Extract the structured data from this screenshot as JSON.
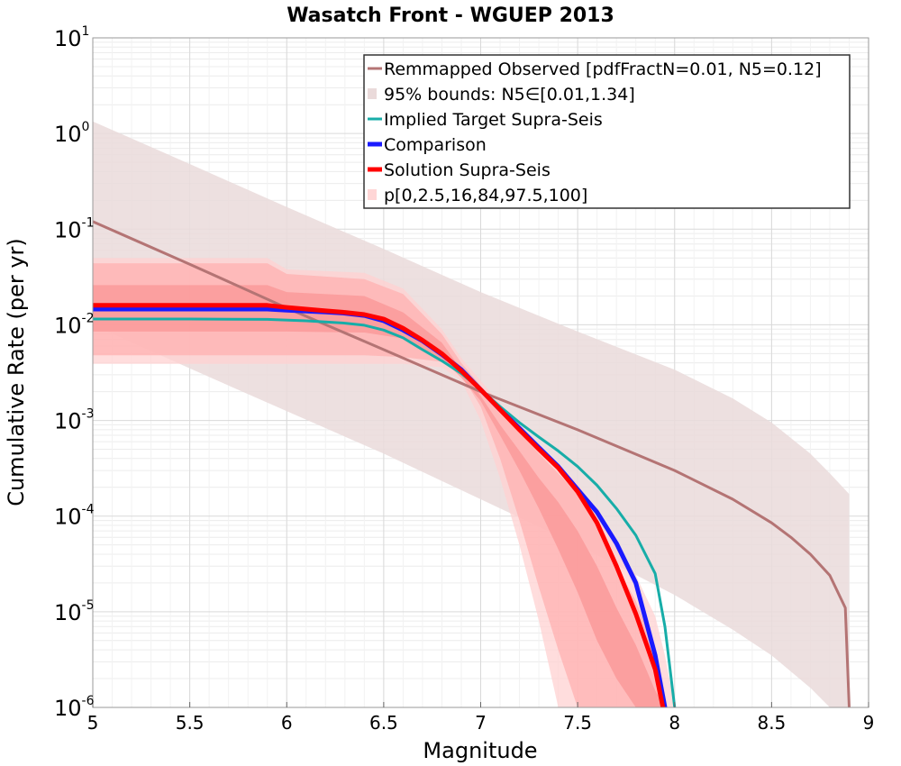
{
  "chart_data": {
    "type": "line",
    "title": "Wasatch Front - WGUEP 2013",
    "xlabel": "Magnitude",
    "ylabel": "Cumulative Rate (per yr)",
    "x_range": [
      5,
      9
    ],
    "y_range": [
      1e-06,
      10
    ],
    "y_scale": "log",
    "x_ticks": [
      "5",
      "5.5",
      "6",
      "6.5",
      "7",
      "7.5",
      "8",
      "8.5",
      "9"
    ],
    "y_ticks": [
      {
        "base": "10",
        "exp": "1",
        "value": 10
      },
      {
        "base": "10",
        "exp": "0",
        "value": 1
      },
      {
        "base": "10",
        "exp": "-1",
        "value": 0.1
      },
      {
        "base": "10",
        "exp": "-2",
        "value": 0.01
      },
      {
        "base": "10",
        "exp": "-3",
        "value": 0.001
      },
      {
        "base": "10",
        "exp": "-4",
        "value": 0.0001
      },
      {
        "base": "10",
        "exp": "-5",
        "value": 1e-05
      },
      {
        "base": "10",
        "exp": "-6",
        "value": 1e-06
      }
    ],
    "grid": true,
    "legend_position": "top-right",
    "legend": [
      {
        "label": "Remmapped Observed [pdfFractN=0.01, N5=0.12]",
        "kind": "line",
        "color": "#b47474"
      },
      {
        "label": "95% bounds: N5∈[0.01,1.34]",
        "kind": "box",
        "color": "#eadada"
      },
      {
        "label": "Implied Target Supra-Seis",
        "kind": "line",
        "color": "#17ada8"
      },
      {
        "label": "Comparison",
        "kind": "line",
        "color": "#1a1aff"
      },
      {
        "label": "Solution Supra-Seis",
        "kind": "line",
        "color": "#ff0000"
      },
      {
        "label": "p[0,2.5,16,84,97.5,100]",
        "kind": "box",
        "color": "#ffd6d6"
      }
    ],
    "bands": [
      {
        "name": "95% bounds: N5∈[0.01,1.34]",
        "color": "#eadada",
        "x": [
          5.0,
          5.5,
          6.0,
          6.5,
          7.0,
          7.5,
          8.0,
          8.3,
          8.5,
          8.7,
          8.8,
          8.9
        ],
        "upper": [
          1.34,
          0.48,
          0.17,
          0.062,
          0.022,
          0.0085,
          0.0034,
          0.0017,
          0.00095,
          0.00045,
          0.00028,
          0.00017
        ],
        "lower": [
          0.01,
          0.0035,
          0.00125,
          0.00045,
          0.00015,
          5e-05,
          1.5e-05,
          6.5e-06,
          3.5e-06,
          1.6e-06,
          1e-06,
          1e-06
        ]
      },
      {
        "name": "p0-p100",
        "color": "#ffd2d2",
        "x": [
          5.0,
          5.9,
          6.0,
          6.4,
          6.6,
          6.8,
          6.9,
          7.0,
          7.1,
          7.2,
          7.3,
          7.4,
          7.5,
          7.6,
          7.7,
          7.8,
          7.9,
          7.95,
          8.0
        ],
        "upper": [
          0.05,
          0.05,
          0.038,
          0.035,
          0.024,
          0.009,
          0.0045,
          0.0026,
          0.0015,
          0.0009,
          0.00055,
          0.00035,
          0.00022,
          0.00011,
          5e-05,
          2.4e-05,
          9e-06,
          3.5e-06,
          1e-06
        ],
        "lower": [
          0.0039,
          0.0039,
          0.0039,
          0.0039,
          0.0039,
          0.0036,
          0.0026,
          0.001,
          0.00025,
          5e-05,
          8e-06,
          1e-06,
          1e-06,
          1e-06,
          1e-06,
          1e-06,
          1e-06,
          1e-06,
          1e-06
        ]
      },
      {
        "name": "p2.5-p97.5",
        "color": "#ffb0b0",
        "x": [
          5.0,
          5.9,
          6.0,
          6.4,
          6.6,
          6.8,
          6.9,
          7.0,
          7.1,
          7.2,
          7.3,
          7.4,
          7.5,
          7.6,
          7.7,
          7.8,
          7.9,
          7.95
        ],
        "upper": [
          0.044,
          0.044,
          0.034,
          0.03,
          0.021,
          0.008,
          0.004,
          0.0023,
          0.0013,
          0.00075,
          0.00045,
          0.00028,
          0.00017,
          8e-05,
          3e-05,
          1.3e-05,
          4e-06,
          1e-06
        ],
        "lower": [
          0.0048,
          0.0048,
          0.0048,
          0.0048,
          0.0046,
          0.0041,
          0.003,
          0.0014,
          0.0004,
          9e-05,
          1.8e-05,
          4e-06,
          1e-06,
          1e-06,
          1e-06,
          1e-06,
          1e-06,
          1e-06
        ]
      },
      {
        "name": "p16-p84",
        "color": "#f99595",
        "x": [
          5.0,
          5.9,
          6.0,
          6.4,
          6.6,
          6.8,
          6.9,
          7.0,
          7.1,
          7.2,
          7.3,
          7.4,
          7.5,
          7.6,
          7.7,
          7.8,
          7.9,
          7.95
        ],
        "upper": [
          0.026,
          0.026,
          0.022,
          0.02,
          0.0135,
          0.0065,
          0.0034,
          0.0018,
          0.0009,
          0.00048,
          0.00025,
          0.00014,
          7e-05,
          3e-05,
          1.1e-05,
          4.5e-06,
          1.5e-06,
          1e-06
        ],
        "lower": [
          0.0085,
          0.0085,
          0.0085,
          0.0083,
          0.0072,
          0.0044,
          0.0028,
          0.0016,
          0.0007,
          0.0003,
          0.00012,
          4.5e-05,
          1.6e-05,
          5e-06,
          2e-06,
          1e-06,
          1e-06,
          1e-06
        ]
      }
    ],
    "series": [
      {
        "name": "Remmapped Observed [pdfFractN=0.01, N5=0.12]",
        "color": "#b47474",
        "width": 3,
        "x": [
          5.0,
          5.5,
          6.0,
          6.5,
          7.0,
          7.5,
          8.0,
          8.3,
          8.5,
          8.6,
          8.7,
          8.8,
          8.88,
          8.9
        ],
        "y": [
          0.12,
          0.043,
          0.015,
          0.0055,
          0.002,
          0.0008,
          0.0003,
          0.00015,
          8.5e-05,
          6e-05,
          4e-05,
          2.4e-05,
          1.1e-05,
          1e-06
        ]
      },
      {
        "name": "Implied Target Supra-Seis",
        "color": "#17ada8",
        "width": 3,
        "x": [
          5.0,
          5.5,
          5.9,
          6.1,
          6.2,
          6.3,
          6.4,
          6.5,
          6.6,
          6.7,
          6.8,
          6.9,
          7.0,
          7.1,
          7.2,
          7.3,
          7.4,
          7.5,
          7.6,
          7.7,
          7.8,
          7.9,
          7.95,
          8.0
        ],
        "y": [
          0.0115,
          0.0115,
          0.0114,
          0.011,
          0.0107,
          0.0104,
          0.0099,
          0.0088,
          0.0073,
          0.0055,
          0.0042,
          0.0031,
          0.0021,
          0.0014,
          0.00095,
          0.00067,
          0.00048,
          0.00033,
          0.00021,
          0.00012,
          6.3e-05,
          2.5e-05,
          7e-06,
          1e-06
        ]
      },
      {
        "name": "Comparison",
        "color": "#1a1aff",
        "width": 5,
        "x": [
          5.0,
          5.9,
          6.0,
          6.2,
          6.3,
          6.4,
          6.5,
          6.6,
          6.7,
          6.8,
          6.9,
          7.0,
          7.1,
          7.2,
          7.3,
          7.4,
          7.5,
          7.6,
          7.7,
          7.8,
          7.9,
          7.95
        ],
        "y": [
          0.0146,
          0.0146,
          0.0142,
          0.0136,
          0.0132,
          0.0125,
          0.011,
          0.0088,
          0.0068,
          0.0049,
          0.0034,
          0.0021,
          0.0013,
          0.00083,
          0.00052,
          0.00033,
          0.00019,
          0.00011,
          5.2e-05,
          2e-05,
          3.5e-06,
          1e-06
        ]
      },
      {
        "name": "Solution Supra-Seis",
        "color": "#ff0000",
        "width": 5,
        "x": [
          5.0,
          5.9,
          6.0,
          6.2,
          6.3,
          6.4,
          6.5,
          6.6,
          6.7,
          6.8,
          6.9,
          7.0,
          7.1,
          7.2,
          7.3,
          7.4,
          7.5,
          7.6,
          7.7,
          7.8,
          7.9,
          7.94
        ],
        "y": [
          0.016,
          0.016,
          0.0152,
          0.014,
          0.0135,
          0.0128,
          0.0115,
          0.0092,
          0.0069,
          0.005,
          0.0033,
          0.0021,
          0.0013,
          0.0008,
          0.0005,
          0.00032,
          0.00018,
          8.5e-05,
          3e-05,
          9.5e-06,
          2.5e-06,
          1e-06
        ]
      }
    ]
  }
}
